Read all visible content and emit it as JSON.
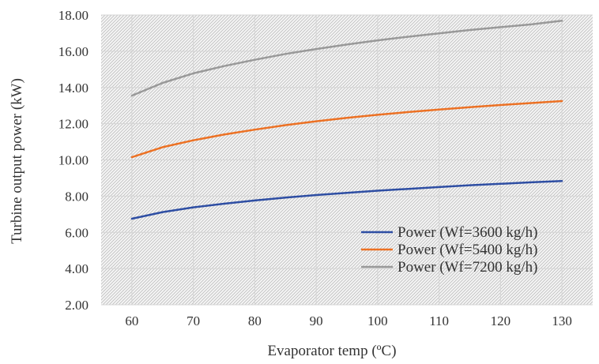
{
  "chart_data": {
    "type": "line",
    "title": "",
    "xlabel": "Evaporator temp (ºC)",
    "ylabel": "Turbine output power (kW)",
    "xlim": [
      55,
      135
    ],
    "ylim": [
      2,
      18
    ],
    "x_ticks": [
      "60",
      "70",
      "80",
      "90",
      "100",
      "110",
      "120",
      "130"
    ],
    "y_ticks": [
      "2.00",
      "4.00",
      "6.00",
      "8.00",
      "10.00",
      "12.00",
      "14.00",
      "16.00",
      "18.00"
    ],
    "grid": true,
    "legend_position": "bottom-right",
    "x": [
      60,
      65,
      70,
      75,
      80,
      85,
      90,
      95,
      100,
      105,
      110,
      115,
      120,
      125,
      130
    ],
    "series": [
      {
        "name": "Power (Wf=3600 kg/h)",
        "color": "#2e4ea3",
        "values": [
          6.75,
          7.12,
          7.38,
          7.58,
          7.76,
          7.92,
          8.06,
          8.18,
          8.3,
          8.4,
          8.5,
          8.6,
          8.68,
          8.76,
          8.83
        ]
      },
      {
        "name": "Power (Wf=5400 kg/h)",
        "color": "#ec7124",
        "values": [
          10.15,
          10.7,
          11.08,
          11.4,
          11.67,
          11.92,
          12.13,
          12.32,
          12.49,
          12.64,
          12.78,
          12.91,
          13.03,
          13.14,
          13.25
        ]
      },
      {
        "name": "Power (Wf=7200 kg/h)",
        "color": "#999999",
        "values": [
          13.55,
          14.25,
          14.78,
          15.18,
          15.53,
          15.85,
          16.12,
          16.37,
          16.6,
          16.8,
          16.99,
          17.17,
          17.33,
          17.48,
          17.68
        ]
      }
    ]
  }
}
